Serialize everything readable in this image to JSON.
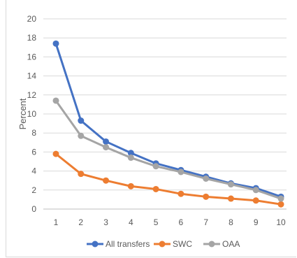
{
  "chart_data": {
    "type": "line",
    "title": "",
    "xlabel": "",
    "ylabel": "Percent",
    "ylim": [
      0,
      20
    ],
    "yticks": [
      0,
      2,
      4,
      6,
      8,
      10,
      12,
      14,
      16,
      18,
      20
    ],
    "x": [
      1,
      2,
      3,
      4,
      5,
      6,
      7,
      8,
      9,
      10
    ],
    "grid": true,
    "legend_position": "bottom",
    "series": [
      {
        "name": "All transfers",
        "color": "#4472c4",
        "values": [
          17.4,
          9.3,
          7.1,
          5.9,
          4.8,
          4.1,
          3.4,
          2.7,
          2.2,
          1.3
        ]
      },
      {
        "name": "SWC",
        "color": "#ed7d31",
        "values": [
          5.8,
          3.7,
          3.0,
          2.4,
          2.1,
          1.6,
          1.3,
          1.1,
          0.9,
          0.5
        ]
      },
      {
        "name": "OAA",
        "color": "#a5a5a5",
        "values": [
          11.4,
          7.7,
          6.5,
          5.4,
          4.5,
          3.9,
          3.2,
          2.6,
          2.0,
          1.1
        ]
      }
    ]
  }
}
